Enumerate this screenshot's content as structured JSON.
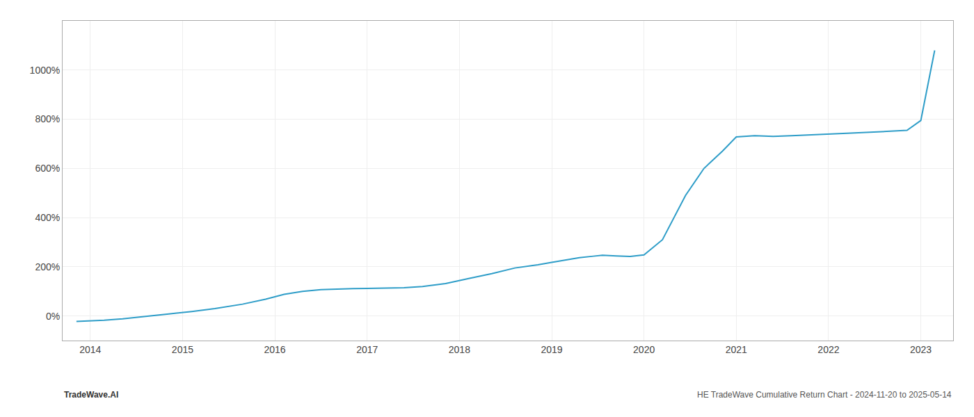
{
  "chart_data": {
    "type": "line",
    "x": [
      2013.85,
      2014.0,
      2014.15,
      2014.35,
      2014.6,
      2014.85,
      2015.1,
      2015.35,
      2015.65,
      2015.9,
      2016.1,
      2016.3,
      2016.5,
      2016.7,
      2016.85,
      2017.0,
      2017.2,
      2017.4,
      2017.6,
      2017.85,
      2018.1,
      2018.35,
      2018.6,
      2018.85,
      2019.0,
      2019.15,
      2019.3,
      2019.45,
      2019.55,
      2019.7,
      2019.85,
      2020.0,
      2020.2,
      2020.45,
      2020.65,
      2020.85,
      2021.0,
      2021.2,
      2021.4,
      2021.6,
      2021.75,
      2021.85,
      2022.0,
      2022.2,
      2022.45,
      2022.65,
      2022.85,
      2023.0,
      2023.15
    ],
    "values": [
      -22,
      -20,
      -17,
      -12,
      -3,
      8,
      18,
      30,
      48,
      68,
      88,
      100,
      107,
      110,
      111,
      112,
      113,
      115,
      120,
      132,
      152,
      172,
      195,
      208,
      218,
      228,
      237,
      243,
      247,
      244,
      242,
      248,
      310,
      490,
      600,
      670,
      728,
      733,
      730,
      733,
      736,
      738,
      740,
      743,
      747,
      751,
      755,
      795,
      1080
    ],
    "color": "#2e9dc8",
    "xlim": [
      2013.7,
      2023.35
    ],
    "xticks": [
      2014,
      2015,
      2016,
      2017,
      2018,
      2019,
      2020,
      2021,
      2022,
      2023
    ],
    "ylim": [
      -100,
      1200
    ],
    "yticks": [
      {
        "value": 0,
        "label": "0%"
      },
      {
        "value": 200,
        "label": "200%"
      },
      {
        "value": 400,
        "label": "400%"
      },
      {
        "value": 600,
        "label": "600%"
      },
      {
        "value": 800,
        "label": "800%"
      },
      {
        "value": 1000,
        "label": "1000%"
      }
    ],
    "grid": true,
    "annotations": [
      "TradeWave.AI",
      "HE TradeWave Cumulative Return Chart - 2024-11-20 to 2025-05-14"
    ]
  }
}
